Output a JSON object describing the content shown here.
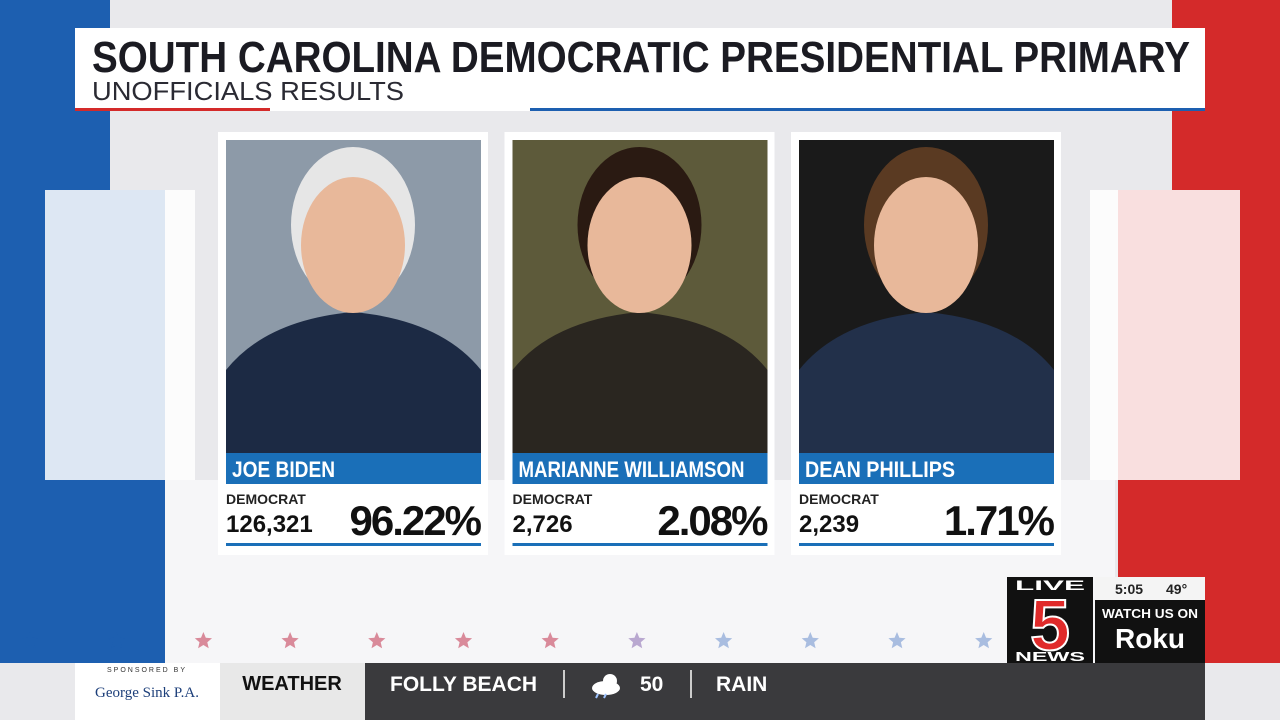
{
  "header": {
    "title": "SOUTH CAROLINA DEMOCRATIC PRESIDENTIAL PRIMARY",
    "subtitle": "UNOFFICIALS RESULTS"
  },
  "candidates": [
    {
      "name": "JOE BIDEN",
      "party": "DEMOCRAT",
      "votes": "126,321",
      "percent": "96.22%"
    },
    {
      "name": "MARIANNE WILLIAMSON",
      "party": "DEMOCRAT",
      "votes": "2,726",
      "percent": "2.08%"
    },
    {
      "name": "DEAN PHILLIPS",
      "party": "DEMOCRAT",
      "votes": "2,239",
      "percent": "1.71%"
    }
  ],
  "station": {
    "live": "LIVE",
    "channel": "5",
    "news": "NEWS",
    "time": "5:05",
    "temperature": "49°",
    "promo": "WATCH US ON",
    "platform": "Roku"
  },
  "ticker": {
    "sponsored": "SPONSORED BY",
    "sponsor": "George Sink P.A.",
    "section": "WEATHER",
    "location": "FOLLY BEACH",
    "temperature": "50",
    "condition": "RAIN"
  }
}
